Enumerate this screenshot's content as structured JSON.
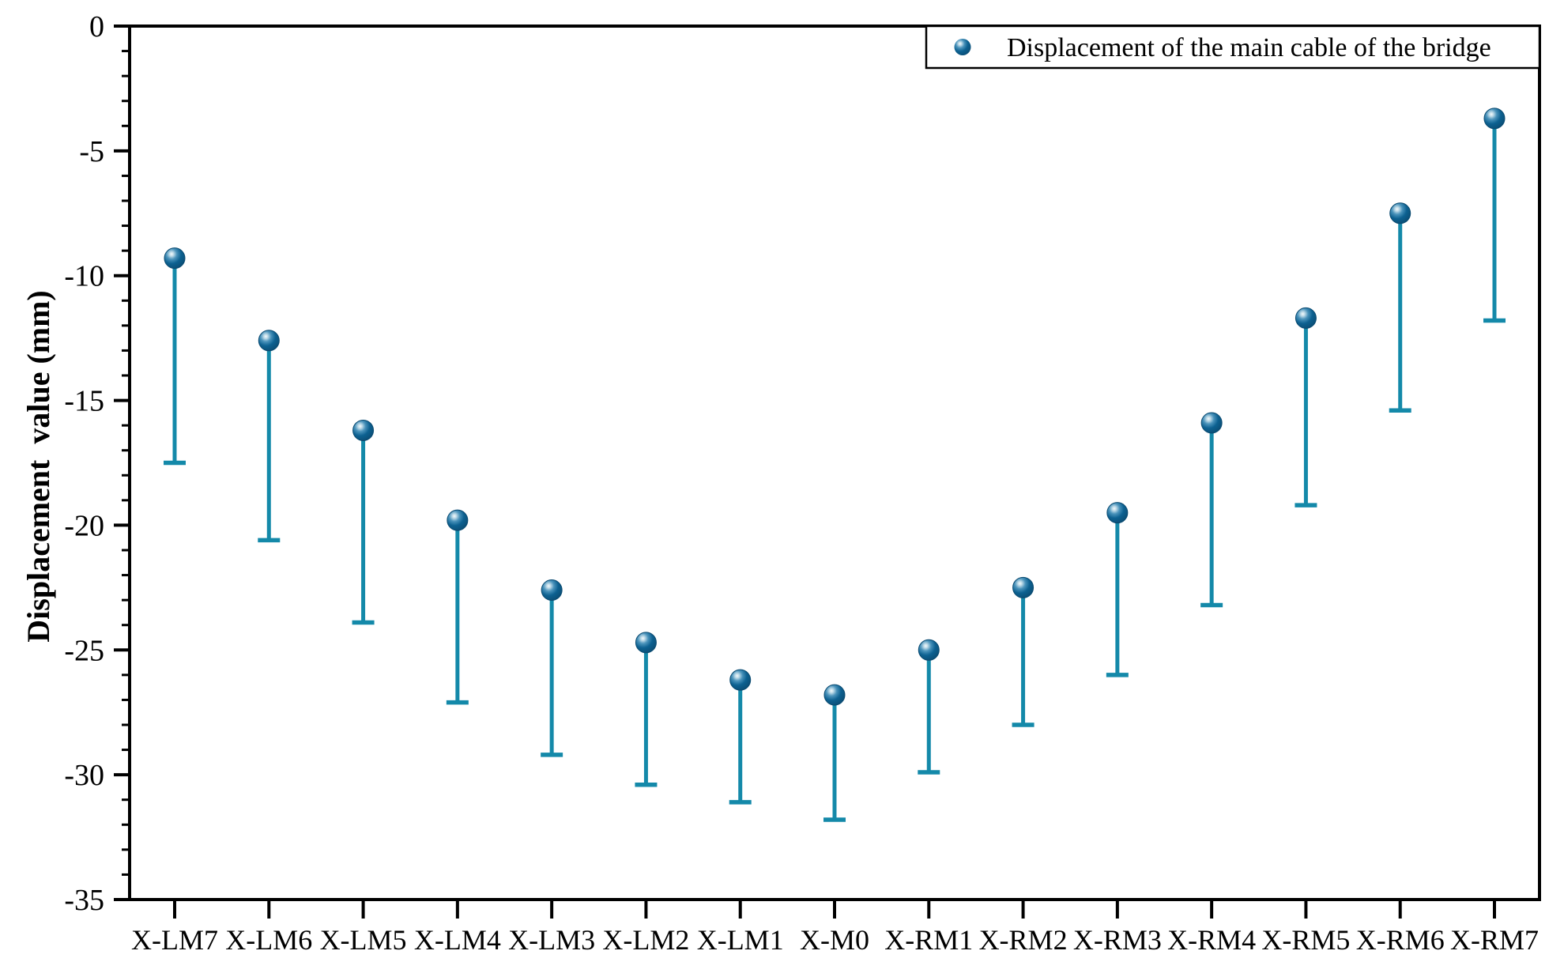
{
  "figure": {
    "y_axis_title": "Displacement  value (mm)",
    "legend_label": "Displacement of the main cable of the bridge"
  },
  "colors": {
    "background": "#ffffff",
    "axis": "#000000",
    "stem": "#1489a9",
    "marker_main": "#0d6191",
    "marker_mid": "#4a93bb",
    "marker_edge": "#0a4a70",
    "marker_highlight": "#f4fafc",
    "text": "#000000"
  },
  "chart_data": {
    "type": "scatter",
    "subtype": "drop-line-lower-error-bars",
    "title": "",
    "xlabel": "",
    "ylabel": "Displacement  value (mm)",
    "grid": false,
    "legend_position": "top-right-inside",
    "marker": "sphere",
    "categories": [
      "X-LM7",
      "X-LM6",
      "X-LM5",
      "X-LM4",
      "X-LM3",
      "X-LM2",
      "X-LM1",
      "X-M0",
      "X-RM1",
      "X-RM2",
      "X-RM3",
      "X-RM4",
      "X-RM5",
      "X-RM6",
      "X-RM7"
    ],
    "series": [
      {
        "name": "Displacement of the main cable of the bridge",
        "values": [
          -9.3,
          -12.6,
          -16.2,
          -19.8,
          -22.6,
          -24.7,
          -26.2,
          -26.8,
          -25.0,
          -22.5,
          -19.5,
          -15.9,
          -11.7,
          -7.5,
          -3.7
        ],
        "error_bar_ends": [
          -17.5,
          -20.6,
          -23.9,
          -27.1,
          -29.2,
          -30.4,
          -31.1,
          -31.8,
          -29.9,
          -28.0,
          -26.0,
          -23.2,
          -19.2,
          -15.4,
          -11.8
        ]
      }
    ],
    "ylim": [
      -35,
      0
    ],
    "yticks_major": [
      0,
      -5,
      -10,
      -15,
      -20,
      -25,
      -30,
      -35
    ],
    "ytick_minor_step": 1
  }
}
